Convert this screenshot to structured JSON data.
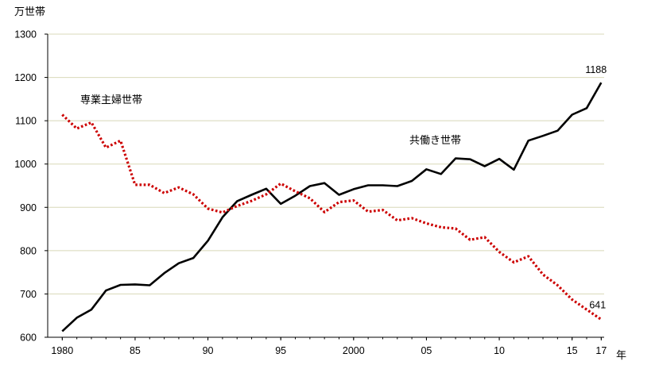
{
  "chart_data": {
    "type": "line",
    "y_unit": "万世帯",
    "x_unit": "年",
    "ylim": [
      600,
      1300
    ],
    "y_ticks": [
      600,
      700,
      800,
      900,
      1000,
      1100,
      1200,
      1300
    ],
    "x_ticks": [
      {
        "year": 1980,
        "label": "1980"
      },
      {
        "year": 1985,
        "label": "85"
      },
      {
        "year": 1990,
        "label": "90"
      },
      {
        "year": 1995,
        "label": "95"
      },
      {
        "year": 2000,
        "label": "2000"
      },
      {
        "year": 2005,
        "label": "05"
      },
      {
        "year": 2010,
        "label": "10"
      },
      {
        "year": 2015,
        "label": "15"
      },
      {
        "year": 2017,
        "label": "17"
      }
    ],
    "grid": "horizontal",
    "x": [
      1980,
      1981,
      1982,
      1983,
      1984,
      1985,
      1986,
      1987,
      1988,
      1989,
      1990,
      1991,
      1992,
      1993,
      1994,
      1995,
      1996,
      1997,
      1998,
      1999,
      2000,
      2001,
      2002,
      2003,
      2004,
      2005,
      2006,
      2007,
      2008,
      2009,
      2010,
      2011,
      2012,
      2013,
      2014,
      2015,
      2016,
      2017
    ],
    "series": [
      {
        "name": "共働き世帯",
        "color": "#000000",
        "style": "solid",
        "values": [
          614,
          645,
          664,
          708,
          721,
          722,
          720,
          748,
          771,
          783,
          823,
          877,
          914,
          929,
          943,
          908,
          927,
          949,
          956,
          929,
          942,
          951,
          951,
          949,
          961,
          988,
          977,
          1013,
          1011,
          995,
          1012,
          987,
          1054,
          1065,
          1077,
          1114,
          1129,
          1188
        ]
      },
      {
        "name": "専業主婦世帯",
        "color": "#cc0000",
        "style": "dotted",
        "values": [
          1114,
          1082,
          1096,
          1038,
          1054,
          952,
          952,
          933,
          946,
          930,
          897,
          888,
          903,
          915,
          930,
          955,
          937,
          921,
          889,
          912,
          916,
          890,
          894,
          870,
          875,
          863,
          854,
          851,
          825,
          831,
          797,
          773,
          787,
          745,
          720,
          687,
          664,
          641
        ]
      }
    ],
    "annotations": [
      {
        "text": "1188",
        "series": "共働き世帯",
        "year": 2017
      },
      {
        "text": "641",
        "series": "専業主婦世帯",
        "year": 2017
      }
    ]
  }
}
